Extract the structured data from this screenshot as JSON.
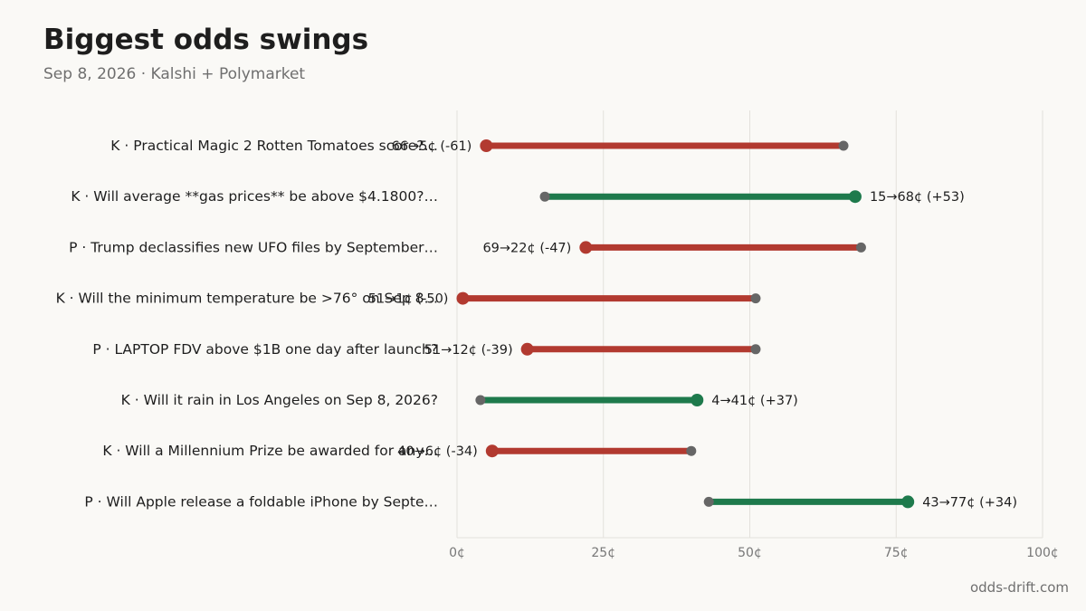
{
  "header": {
    "title": "Biggest odds swings",
    "subtitle": "Sep 8, 2026 · Kalshi + Polymarket"
  },
  "footer": {
    "source": "odds-drift.com"
  },
  "colors": {
    "up": "#1e7a4c",
    "down": "#b23a30",
    "start_dot": "#666666",
    "grid": "#e3e1dc",
    "text": "#1e1e1e",
    "muted": "#777777"
  },
  "chart_data": {
    "type": "dumbbell",
    "title": "Biggest odds swings",
    "subtitle": "Sep 8, 2026 · Kalshi + Polymarket",
    "x_unit": "¢",
    "xlim": [
      0,
      100
    ],
    "xticks": [
      0,
      25,
      50,
      75,
      100
    ],
    "xtick_labels": [
      "0¢",
      "25¢",
      "50¢",
      "75¢",
      "100¢"
    ],
    "grid": "vertical",
    "rows": [
      {
        "label": "K · Practical Magic 2 Rotten Tomatoes score?…",
        "from": 66,
        "to": 5,
        "value_label": "66→5¢ (-61)"
      },
      {
        "label": "K · Will average **gas prices** be above $4.1800?…",
        "from": 15,
        "to": 68,
        "value_label": "15→68¢ (+53)"
      },
      {
        "label": "P · Trump declassifies new UFO files by September…",
        "from": 69,
        "to": 22,
        "value_label": "69→22¢ (-47)"
      },
      {
        "label": "K · Will the minimum temperature be >76° on Sep 8…",
        "from": 51,
        "to": 1,
        "value_label": "51→1¢ (-50)"
      },
      {
        "label": "P · LAPTOP FDV above $1B one day after launch?",
        "from": 51,
        "to": 12,
        "value_label": "51→12¢ (-39)"
      },
      {
        "label": "K · Will it rain in Los Angeles on Sep 8, 2026?",
        "from": 4,
        "to": 41,
        "value_label": "4→41¢ (+37)"
      },
      {
        "label": "K · Will a Millennium Prize be awarded for any…",
        "from": 40,
        "to": 6,
        "value_label": "40→6¢ (-34)"
      },
      {
        "label": "P · Will Apple release a foldable iPhone by Septe…",
        "from": 43,
        "to": 77,
        "value_label": "43→77¢ (+34)"
      }
    ]
  }
}
